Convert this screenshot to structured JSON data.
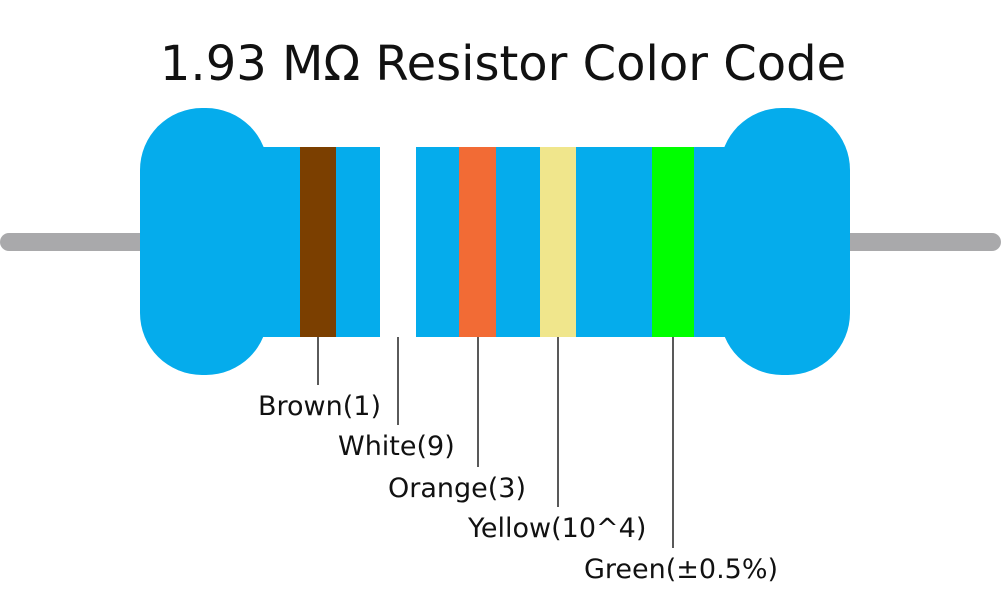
{
  "header": {
    "title": "1.93 MΩ Resistor Color Code"
  },
  "bands": [
    {
      "label": "Brown(1)"
    },
    {
      "label": "White(9)"
    },
    {
      "label": "Orange(3)"
    },
    {
      "label": "Yellow(10^4)"
    },
    {
      "label": "Green(±0.5%)"
    }
  ]
}
